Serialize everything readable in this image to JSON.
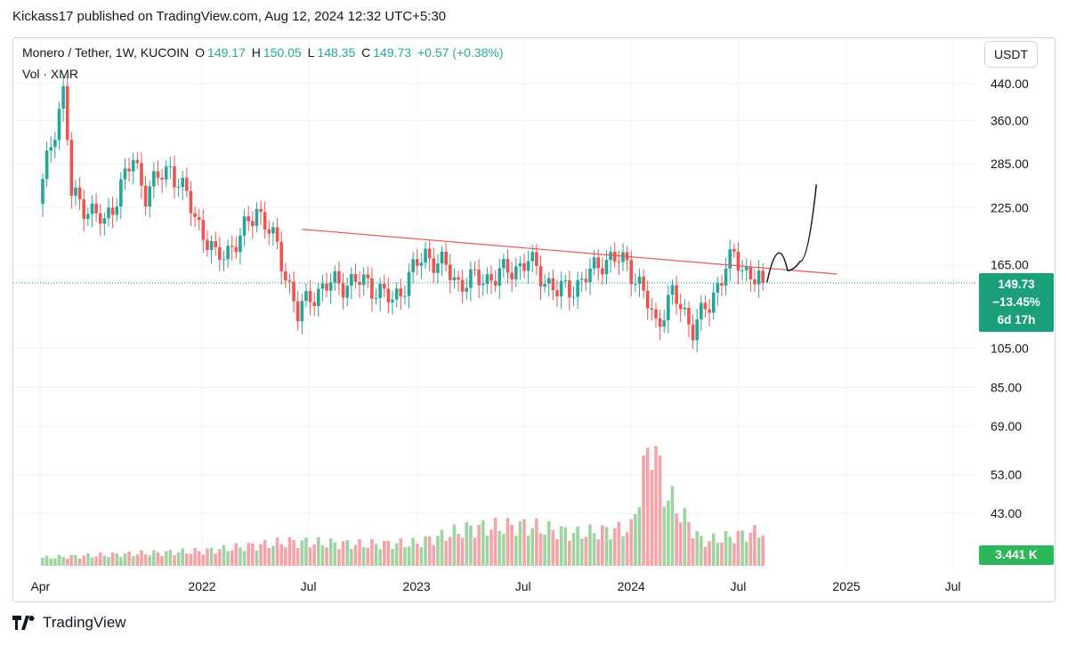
{
  "header": {
    "publish_line": "Kickass17 published on TradingView.com, Aug 12, 2024 12:32 UTC+5:30"
  },
  "legend": {
    "symbol": "Monero / Tether, 1W, KUCOIN",
    "open_label": "O",
    "open": "149.17",
    "high_label": "H",
    "high": "150.05",
    "low_label": "L",
    "low": "148.35",
    "close_label": "C",
    "close": "149.73",
    "change": "+0.57 (+0.38%)",
    "volume_label": "Vol · XMR"
  },
  "currency_button": "USDT",
  "price_tag": {
    "price": "149.73",
    "change": "−13.45%",
    "countdown": "6d 17h"
  },
  "volume_tag": "3.441 K",
  "footer": {
    "brand": "TradingView"
  },
  "colors": {
    "up": "#26a69a",
    "down": "#ef5350",
    "vol_up": "#9fd3a1",
    "vol_down": "#f4a3a9",
    "trendline": "#ef5350",
    "accent": "#1b9f7b"
  },
  "chart_data": {
    "type": "candlestick",
    "title": "Monero / Tether, 1W, KUCOIN",
    "y_scale": "log",
    "y_ticks": [
      "440.00",
      "360.00",
      "285.00",
      "225.00",
      "165.00",
      "105.00",
      "85.00",
      "69.00",
      "53.00",
      "43.00"
    ],
    "y_tick_values": [
      440,
      360,
      285,
      225,
      165,
      105,
      85,
      69,
      53,
      43
    ],
    "x_ticks": [
      "Apr",
      "2022",
      "Jul",
      "2023",
      "Jul",
      "2024",
      "Jul",
      "2025",
      "Jul"
    ],
    "x_tick_dates": [
      "2021-04-01",
      "2022-01-01",
      "2022-07-01",
      "2023-01-01",
      "2023-07-01",
      "2024-01-01",
      "2024-07-01",
      "2025-01-01",
      "2025-07-01"
    ],
    "last_close": 149.73,
    "grid": true,
    "volume_anchors": [
      {
        "date": "2021-04-01",
        "v": 0.3
      },
      {
        "date": "2021-09-01",
        "v": 0.45
      },
      {
        "date": "2022-01-01",
        "v": 0.55
      },
      {
        "date": "2022-06-01",
        "v": 0.9
      },
      {
        "date": "2022-10-01",
        "v": 0.8
      },
      {
        "date": "2023-01-01",
        "v": 0.85
      },
      {
        "date": "2023-04-01",
        "v": 1.4
      },
      {
        "date": "2023-07-01",
        "v": 1.5
      },
      {
        "date": "2023-10-01",
        "v": 1.2
      },
      {
        "date": "2024-01-01",
        "v": 1.4
      },
      {
        "date": "2024-02-05",
        "v": 4.8
      },
      {
        "date": "2024-02-26",
        "v": 2.8
      },
      {
        "date": "2024-05-01",
        "v": 0.9
      },
      {
        "date": "2024-08-12",
        "v": 1.3
      }
    ],
    "price_anchors": [
      {
        "date": "2021-04-05",
        "close": 255
      },
      {
        "date": "2021-04-26",
        "close": 350
      },
      {
        "date": "2021-05-10",
        "close": 420
      },
      {
        "date": "2021-05-24",
        "close": 240
      },
      {
        "date": "2021-06-21",
        "close": 225
      },
      {
        "date": "2021-07-19",
        "close": 205
      },
      {
        "date": "2021-09-06",
        "close": 290
      },
      {
        "date": "2021-09-27",
        "close": 245
      },
      {
        "date": "2021-11-08",
        "close": 280
      },
      {
        "date": "2021-12-20",
        "close": 215
      },
      {
        "date": "2022-01-24",
        "close": 170
      },
      {
        "date": "2022-03-07",
        "close": 190
      },
      {
        "date": "2022-04-04",
        "close": 225
      },
      {
        "date": "2022-05-09",
        "close": 180
      },
      {
        "date": "2022-06-13",
        "close": 125
      },
      {
        "date": "2022-07-04",
        "close": 140
      },
      {
        "date": "2022-08-15",
        "close": 150
      },
      {
        "date": "2022-10-10",
        "close": 150
      },
      {
        "date": "2022-11-21",
        "close": 135
      },
      {
        "date": "2023-01-16",
        "close": 175
      },
      {
        "date": "2023-02-13",
        "close": 165
      },
      {
        "date": "2023-03-13",
        "close": 150
      },
      {
        "date": "2023-05-15",
        "close": 155
      },
      {
        "date": "2023-07-10",
        "close": 168
      },
      {
        "date": "2023-08-28",
        "close": 142
      },
      {
        "date": "2023-10-09",
        "close": 150
      },
      {
        "date": "2023-11-13",
        "close": 170
      },
      {
        "date": "2023-12-25",
        "close": 168
      },
      {
        "date": "2024-01-22",
        "close": 140
      },
      {
        "date": "2024-02-12",
        "close": 120
      },
      {
        "date": "2024-03-11",
        "close": 140
      },
      {
        "date": "2024-04-15",
        "close": 118
      },
      {
        "date": "2024-05-13",
        "close": 132
      },
      {
        "date": "2024-06-10",
        "close": 165
      },
      {
        "date": "2024-06-24",
        "close": 170
      },
      {
        "date": "2024-07-15",
        "close": 160
      },
      {
        "date": "2024-08-12",
        "close": 149.73
      }
    ],
    "trendline": {
      "start": {
        "date": "2022-06-20",
        "price": 200
      },
      "end": {
        "date": "2024-12-16",
        "price": 157
      }
    },
    "sketch_projection": [
      {
        "date": "2024-08-19",
        "price": 150
      },
      {
        "date": "2024-09-09",
        "price": 176
      },
      {
        "date": "2024-09-23",
        "price": 160
      },
      {
        "date": "2024-10-14",
        "price": 168
      },
      {
        "date": "2024-11-11",
        "price": 255
      }
    ]
  }
}
